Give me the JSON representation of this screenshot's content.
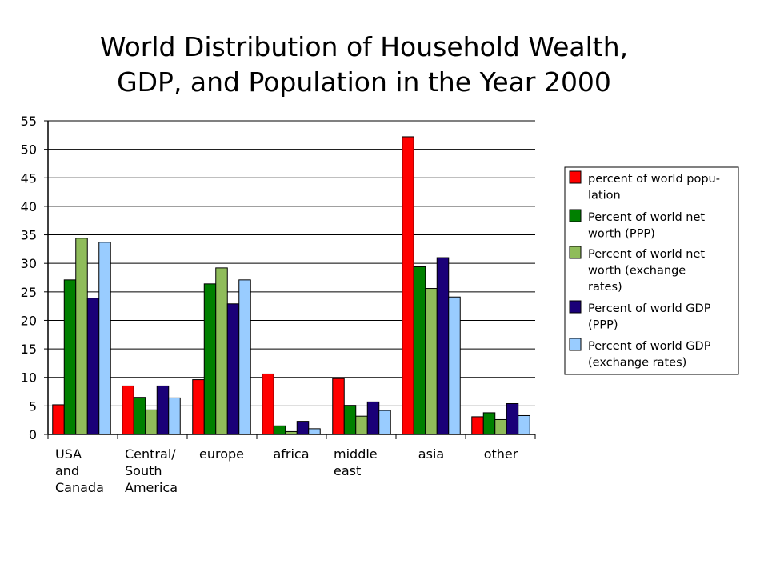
{
  "chart_data": {
    "type": "bar",
    "title_lines": [
      "World Distribution of Household Wealth,",
      "GDP, and Population in the Year 2000"
    ],
    "xlabel": "",
    "ylabel": "",
    "ylim": [
      0,
      55
    ],
    "yticks": [
      "0",
      "5",
      "10",
      "15",
      "20",
      "25",
      "30",
      "35",
      "40",
      "45",
      "50",
      "55"
    ],
    "grid": true,
    "legend_position": "right",
    "categories": [
      [
        "USA",
        "and",
        "Canada"
      ],
      [
        "Central/",
        "South",
        "America"
      ],
      [
        "europe"
      ],
      [
        "africa"
      ],
      [
        "middle",
        "east"
      ],
      [
        "asia"
      ],
      [
        "other"
      ]
    ],
    "series": [
      {
        "name_lines": [
          "percent of world popu-",
          "lation"
        ],
        "color": "#ff0000",
        "values": [
          5.2,
          8.5,
          9.6,
          10.6,
          9.8,
          52.2,
          3.1
        ]
      },
      {
        "name_lines": [
          "Percent of world net",
          "worth (PPP)"
        ],
        "color": "#008000",
        "values": [
          27.1,
          6.5,
          26.4,
          1.5,
          5.1,
          29.4,
          3.8
        ]
      },
      {
        "name_lines": [
          "Percent of world net",
          "worth (exchange",
          "rates)"
        ],
        "color": "#8fbc5a",
        "values": [
          34.4,
          4.3,
          29.2,
          0.5,
          3.2,
          25.6,
          2.6
        ]
      },
      {
        "name_lines": [
          "Percent of world GDP",
          "(PPP)"
        ],
        "color": "#1a0078",
        "values": [
          23.9,
          8.5,
          22.9,
          2.3,
          5.7,
          31.0,
          5.4
        ]
      },
      {
        "name_lines": [
          "Percent of world GDP",
          "(exchange rates)"
        ],
        "color": "#99ccff",
        "values": [
          33.7,
          6.4,
          27.1,
          1.0,
          4.2,
          24.1,
          3.3
        ]
      }
    ]
  }
}
